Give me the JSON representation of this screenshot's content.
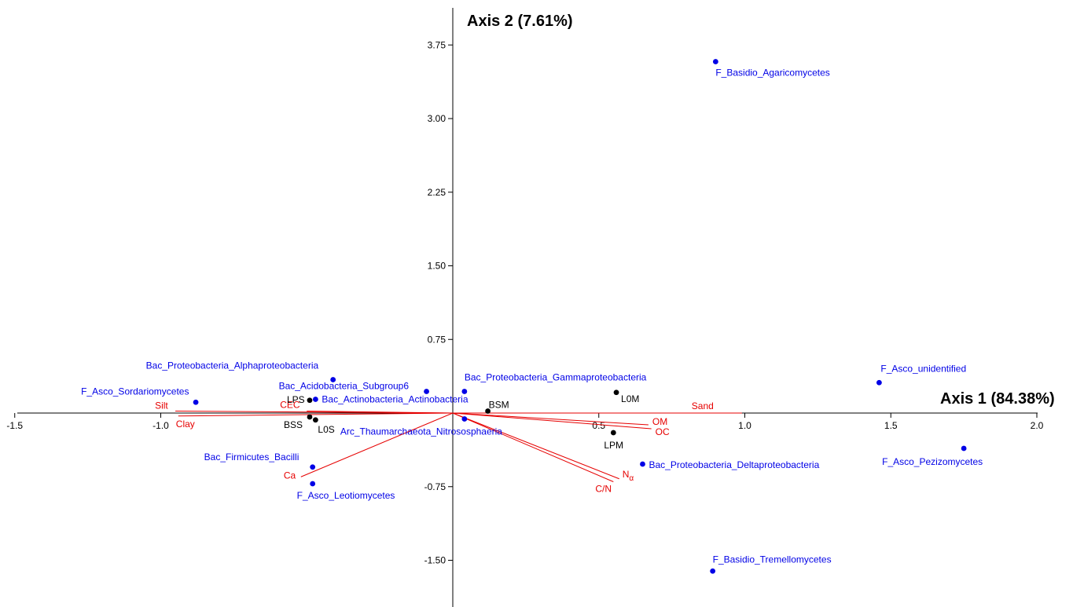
{
  "chart_data": {
    "type": "scatter",
    "subtype": "biplot",
    "xaxis_title": "Axis 1 (84.38%)",
    "yaxis_title": "Axis 2 (7.61%)",
    "xlim": [
      -1.5,
      2.0
    ],
    "ylim": [
      -2.0,
      4.0
    ],
    "xticks": [
      {
        "v": -1.5,
        "label": "-1.5"
      },
      {
        "v": -1.0,
        "label": "-1.0"
      },
      {
        "v": 0.5,
        "label": "0.5"
      },
      {
        "v": 1.0,
        "label": "1.0"
      },
      {
        "v": 1.5,
        "label": "1.5"
      },
      {
        "v": 2.0,
        "label": "2.0"
      }
    ],
    "yticks": [
      {
        "v": 3.75,
        "label": "3.75"
      },
      {
        "v": 3.0,
        "label": "3.00"
      },
      {
        "v": 2.25,
        "label": "2.25"
      },
      {
        "v": 1.5,
        "label": "1.50"
      },
      {
        "v": 0.75,
        "label": "0.75"
      },
      {
        "v": -0.75,
        "label": "-0.75"
      },
      {
        "v": -1.5,
        "label": "-1.50"
      }
    ],
    "colors": {
      "taxa": "#0000e6",
      "samples": "#000000",
      "variables": "#e60000",
      "axes": "#000000"
    },
    "taxa": [
      {
        "name": "F_Basidio_Agaricomycetes",
        "x": 0.9,
        "y": 3.58
      },
      {
        "name": "F_Asco_unidentified",
        "x": 1.46,
        "y": 0.31
      },
      {
        "name": "F_Asco_Pezizomycetes",
        "x": 1.75,
        "y": -0.36
      },
      {
        "name": "F_Basidio_Tremellomycetes",
        "x": 0.89,
        "y": -1.61
      },
      {
        "name": "Bac_Proteobacteria_Deltaproteobacteria",
        "x": 0.65,
        "y": -0.52
      },
      {
        "name": "Bac_Proteobacteria_Gammaproteobacteria",
        "x": 0.04,
        "y": 0.22
      },
      {
        "name": "Arc_Thaumarchaeota_Nitrososphaeria",
        "x": 0.04,
        "y": -0.06
      },
      {
        "name": "Bac_Proteobacteria_Alphaproteobacteria",
        "x": -0.41,
        "y": 0.34
      },
      {
        "name": "Bac_Acidobacteria_Subgroup6",
        "x": -0.09,
        "y": 0.22
      },
      {
        "name": "Bac_Actinobacteria_Actinobacteria",
        "x": -0.47,
        "y": 0.14
      },
      {
        "name": "F_Asco_Sordariomycetes",
        "x": -0.88,
        "y": 0.11
      },
      {
        "name": "Bac_Firmicutes_Bacilli",
        "x": -0.48,
        "y": -0.55
      },
      {
        "name": "F_Asco_Leotiomycetes",
        "x": -0.48,
        "y": -0.72
      }
    ],
    "samples": [
      {
        "name": "L0M",
        "x": 0.56,
        "y": 0.21
      },
      {
        "name": "LPM",
        "x": 0.55,
        "y": -0.2
      },
      {
        "name": "BSM",
        "x": 0.12,
        "y": 0.02
      },
      {
        "name": "LPS",
        "x": -0.49,
        "y": 0.13
      },
      {
        "name": "BSS",
        "x": -0.49,
        "y": -0.04
      },
      {
        "name": "L0S",
        "x": -0.47,
        "y": -0.07
      }
    ],
    "variables": [
      {
        "name": "Sand",
        "x": 0.99,
        "y": 0.0
      },
      {
        "name": "Silt",
        "x": -0.95,
        "y": 0.02
      },
      {
        "name": "Clay",
        "x": -0.94,
        "y": -0.03
      },
      {
        "name": "CEC",
        "x": -0.5,
        "y": 0.02
      },
      {
        "name": "Ca",
        "x": -0.52,
        "y": -0.65
      },
      {
        "name": "OM",
        "x": 0.67,
        "y": -0.12
      },
      {
        "name": "OC",
        "x": 0.68,
        "y": -0.16
      },
      {
        "name": "Nα",
        "x": 0.57,
        "y": -0.67
      },
      {
        "name": "C/N",
        "x": 0.55,
        "y": -0.7
      }
    ]
  }
}
